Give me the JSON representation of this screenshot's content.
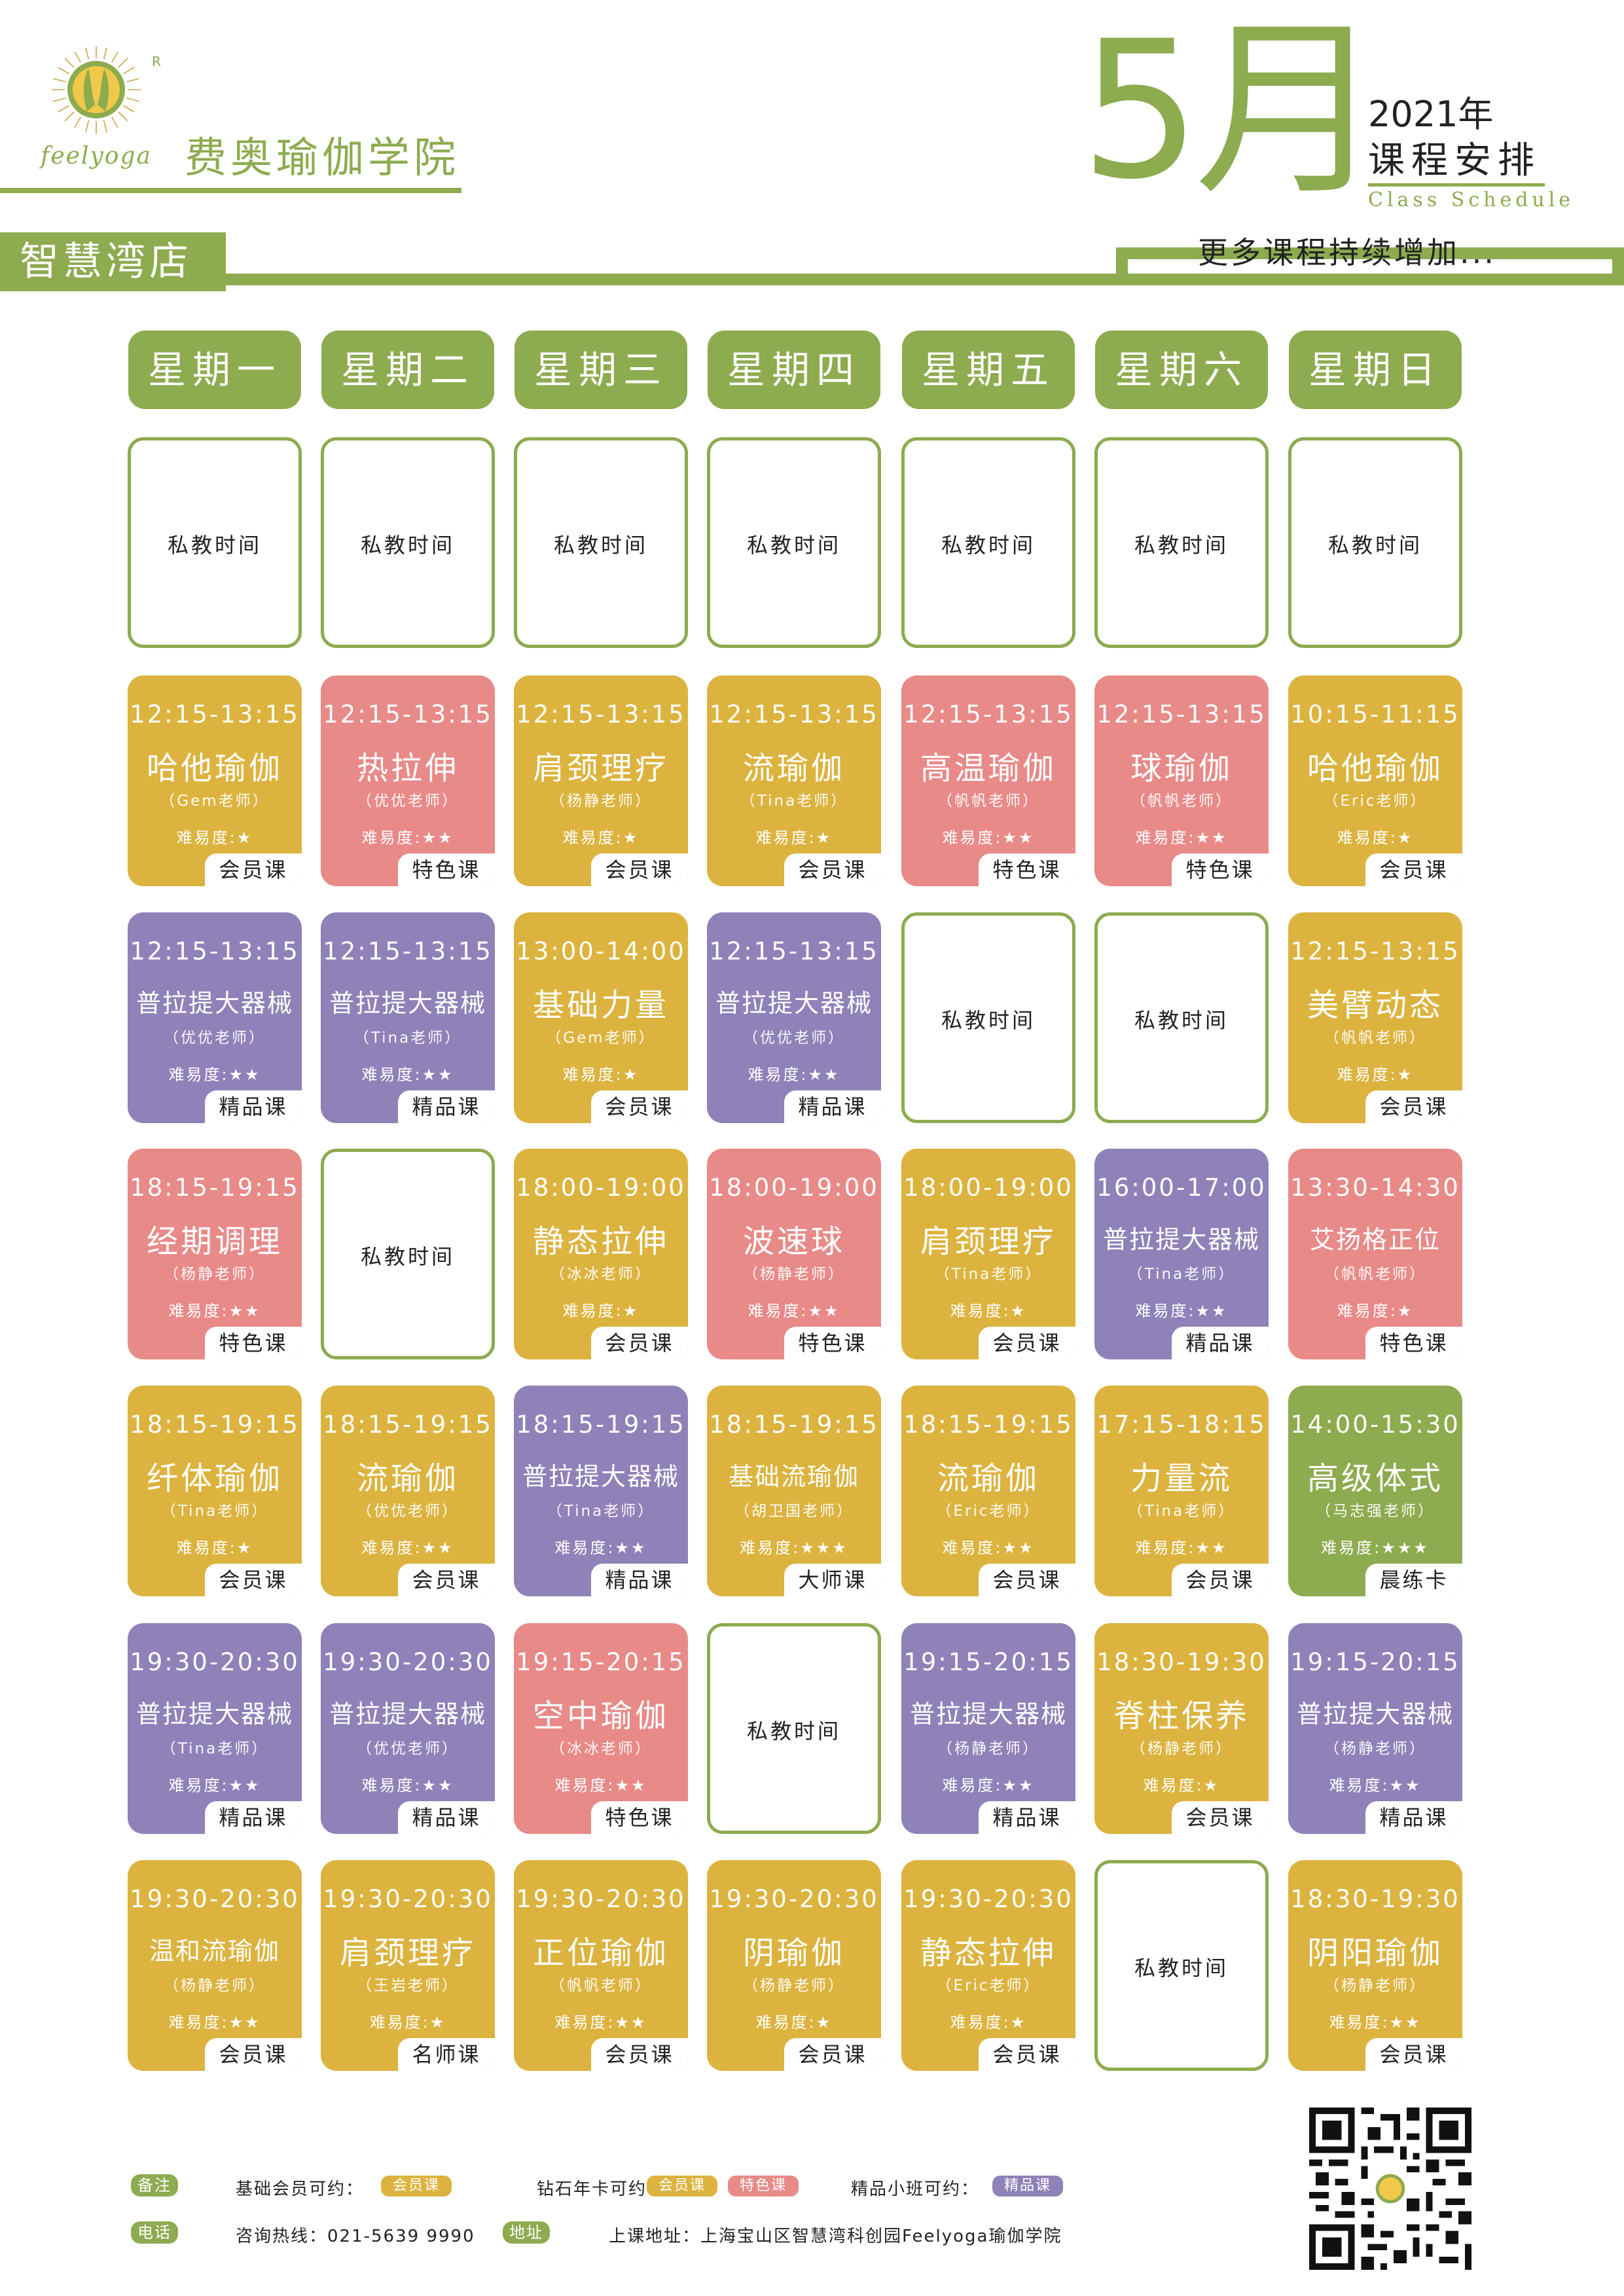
{
  "brand": {
    "logo_word": "feelyoga",
    "reg_mark": "R",
    "academy": "费奥瑜伽学院",
    "branch": "智慧湾店"
  },
  "header": {
    "month": "5月",
    "year": "2021年",
    "schedule": "课程安排",
    "schedule_en": "Class Schedule",
    "more": "更多课程持续增加..."
  },
  "colors": {
    "green": "#8dab4f",
    "yellow": "#dcb33e",
    "pink": "#e88a88",
    "purple": "#8e82b8"
  },
  "days": [
    "星期一",
    "星期二",
    "星期三",
    "星期四",
    "星期五",
    "星期六",
    "星期日"
  ],
  "difficulty_label": "难易度:",
  "rows": [
    [
      {
        "type": "private",
        "text": "私教时间"
      },
      {
        "type": "private",
        "text": "私教时间"
      },
      {
        "type": "private",
        "text": "私教时间"
      },
      {
        "type": "private",
        "text": "私教时间"
      },
      {
        "type": "private",
        "text": "私教时间"
      },
      {
        "type": "private",
        "text": "私教时间"
      },
      {
        "type": "private",
        "text": "私教时间"
      }
    ],
    [
      {
        "type": "class",
        "color": "yellow",
        "time": "12:15-13:15",
        "name": "哈他瑜伽",
        "teacher": "（Gem老师）",
        "stars": "★",
        "tag": "会员课"
      },
      {
        "type": "class",
        "color": "pink",
        "time": "12:15-13:15",
        "name": "热拉伸",
        "teacher": "（优优老师）",
        "stars": "★★",
        "tag": "特色课"
      },
      {
        "type": "class",
        "color": "yellow",
        "time": "12:15-13:15",
        "name": "肩颈理疗",
        "teacher": "（杨静老师）",
        "stars": "★",
        "tag": "会员课"
      },
      {
        "type": "class",
        "color": "yellow",
        "time": "12:15-13:15",
        "name": "流瑜伽",
        "teacher": "（Tina老师）",
        "stars": "★",
        "tag": "会员课"
      },
      {
        "type": "class",
        "color": "pink",
        "time": "12:15-13:15",
        "name": "高温瑜伽",
        "teacher": "（帆帆老师）",
        "stars": "★★",
        "tag": "特色课"
      },
      {
        "type": "class",
        "color": "pink",
        "time": "12:15-13:15",
        "name": "球瑜伽",
        "teacher": "（帆帆老师）",
        "stars": "★★",
        "tag": "特色课"
      },
      {
        "type": "class",
        "color": "yellow",
        "time": "10:15-11:15",
        "name": "哈他瑜伽",
        "teacher": "（Eric老师）",
        "stars": "★",
        "tag": "会员课"
      }
    ],
    [
      {
        "type": "class",
        "color": "purple",
        "time": "12:15-13:15",
        "name": "普拉提大器械",
        "teacher": "（优优老师）",
        "stars": "★★",
        "tag": "精品课",
        "small": true
      },
      {
        "type": "class",
        "color": "purple",
        "time": "12:15-13:15",
        "name": "普拉提大器械",
        "teacher": "（Tina老师）",
        "stars": "★★",
        "tag": "精品课",
        "small": true
      },
      {
        "type": "class",
        "color": "yellow",
        "time": "13:00-14:00",
        "name": "基础力量",
        "teacher": "（Gem老师）",
        "stars": "★",
        "tag": "会员课"
      },
      {
        "type": "class",
        "color": "purple",
        "time": "12:15-13:15",
        "name": "普拉提大器械",
        "teacher": "（优优老师）",
        "stars": "★★",
        "tag": "精品课",
        "small": true
      },
      {
        "type": "private",
        "text": "私教时间"
      },
      {
        "type": "private",
        "text": "私教时间"
      },
      {
        "type": "class",
        "color": "yellow",
        "time": "12:15-13:15",
        "name": "美臂动态",
        "teacher": "（帆帆老师）",
        "stars": "★",
        "tag": "会员课"
      }
    ],
    [
      {
        "type": "class",
        "color": "pink",
        "time": "18:15-19:15",
        "name": "经期调理",
        "teacher": "（杨静老师）",
        "stars": "★★",
        "tag": "特色课"
      },
      {
        "type": "private",
        "text": "私教时间"
      },
      {
        "type": "class",
        "color": "yellow",
        "time": "18:00-19:00",
        "name": "静态拉伸",
        "teacher": "（冰冰老师）",
        "stars": "★",
        "tag": "会员课"
      },
      {
        "type": "class",
        "color": "pink",
        "time": "18:00-19:00",
        "name": "波速球",
        "teacher": "（杨静老师）",
        "stars": "★★",
        "tag": "特色课"
      },
      {
        "type": "class",
        "color": "yellow",
        "time": "18:00-19:00",
        "name": "肩颈理疗",
        "teacher": "（Tina老师）",
        "stars": "★",
        "tag": "会员课"
      },
      {
        "type": "class",
        "color": "purple",
        "time": "16:00-17:00",
        "name": "普拉提大器械",
        "teacher": "（Tina老师）",
        "stars": "★★",
        "tag": "精品课",
        "small": true
      },
      {
        "type": "class",
        "color": "pink",
        "time": "13:30-14:30",
        "name": "艾扬格正位",
        "teacher": "（帆帆老师）",
        "stars": "★",
        "tag": "特色课",
        "small": true
      }
    ],
    [
      {
        "type": "class",
        "color": "yellow",
        "time": "18:15-19:15",
        "name": "纤体瑜伽",
        "teacher": "（Tina老师）",
        "stars": "★",
        "tag": "会员课"
      },
      {
        "type": "class",
        "color": "yellow",
        "time": "18:15-19:15",
        "name": "流瑜伽",
        "teacher": "（优优老师）",
        "stars": "★★",
        "tag": "会员课"
      },
      {
        "type": "class",
        "color": "purple",
        "time": "18:15-19:15",
        "name": "普拉提大器械",
        "teacher": "（Tina老师）",
        "stars": "★★",
        "tag": "精品课",
        "small": true
      },
      {
        "type": "class",
        "color": "yellow",
        "time": "18:15-19:15",
        "name": "基础流瑜伽",
        "teacher": "（胡卫国老师）",
        "stars": "★★★",
        "tag": "大师课",
        "small": true
      },
      {
        "type": "class",
        "color": "yellow",
        "time": "18:15-19:15",
        "name": "流瑜伽",
        "teacher": "（Eric老师）",
        "stars": "★★",
        "tag": "会员课"
      },
      {
        "type": "class",
        "color": "yellow",
        "time": "17:15-18:15",
        "name": "力量流",
        "teacher": "（Tina老师）",
        "stars": "★★",
        "tag": "会员课"
      },
      {
        "type": "class",
        "color": "green",
        "time": "14:00-15:30",
        "name": "高级体式",
        "teacher": "（马志强老师）",
        "stars": "★★★",
        "tag": "晨练卡"
      }
    ],
    [
      {
        "type": "class",
        "color": "purple",
        "time": "19:30-20:30",
        "name": "普拉提大器械",
        "teacher": "（Tina老师）",
        "stars": "★★",
        "tag": "精品课",
        "small": true
      },
      {
        "type": "class",
        "color": "purple",
        "time": "19:30-20:30",
        "name": "普拉提大器械",
        "teacher": "（优优老师）",
        "stars": "★★",
        "tag": "精品课",
        "small": true
      },
      {
        "type": "class",
        "color": "pink",
        "time": "19:15-20:15",
        "name": "空中瑜伽",
        "teacher": "（冰冰老师）",
        "stars": "★★",
        "tag": "特色课"
      },
      {
        "type": "private",
        "text": "私教时间"
      },
      {
        "type": "class",
        "color": "purple",
        "time": "19:15-20:15",
        "name": "普拉提大器械",
        "teacher": "（杨静老师）",
        "stars": "★★",
        "tag": "精品课",
        "small": true
      },
      {
        "type": "class",
        "color": "yellow",
        "time": "18:30-19:30",
        "name": "脊柱保养",
        "teacher": "（杨静老师）",
        "stars": "★",
        "tag": "会员课"
      },
      {
        "type": "class",
        "color": "purple",
        "time": "19:15-20:15",
        "name": "普拉提大器械",
        "teacher": "（杨静老师）",
        "stars": "★★",
        "tag": "精品课",
        "small": true
      }
    ],
    [
      {
        "type": "class",
        "color": "yellow",
        "time": "19:30-20:30",
        "name": "温和流瑜伽",
        "teacher": "（杨静老师）",
        "stars": "★★",
        "tag": "会员课",
        "small": true
      },
      {
        "type": "class",
        "color": "yellow",
        "time": "19:30-20:30",
        "name": "肩颈理疗",
        "teacher": "（王岩老师）",
        "stars": "★",
        "tag": "名师课"
      },
      {
        "type": "class",
        "color": "yellow",
        "time": "19:30-20:30",
        "name": "正位瑜伽",
        "teacher": "（帆帆老师）",
        "stars": "★★",
        "tag": "会员课"
      },
      {
        "type": "class",
        "color": "yellow",
        "time": "19:30-20:30",
        "name": "阴瑜伽",
        "teacher": "（杨静老师）",
        "stars": "★",
        "tag": "会员课"
      },
      {
        "type": "class",
        "color": "yellow",
        "time": "19:30-20:30",
        "name": "静态拉伸",
        "teacher": "（Eric老师）",
        "stars": "★",
        "tag": "会员课"
      },
      {
        "type": "private",
        "text": "私教时间"
      },
      {
        "type": "class",
        "color": "yellow",
        "time": "18:30-19:30",
        "name": "阴阳瑜伽",
        "teacher": "（杨静老师）",
        "stars": "★★",
        "tag": "会员课"
      }
    ]
  ],
  "footer": {
    "note_badge": "备注",
    "basic_label": "基础会员可约：",
    "basic_pill": "会员课",
    "diamond_label": "钻石年卡可约：",
    "diamond_pill1": "会员课",
    "diamond_pill2": "特色课",
    "boutique_label": "精品小班可约：",
    "boutique_pill": "精品课",
    "phone_badge": "电话",
    "hotline": "咨询热线：021-5639 9990",
    "address_badge": "地址",
    "address": "上课地址：上海宝山区智慧湾科创园Feelyoga瑜伽学院"
  }
}
